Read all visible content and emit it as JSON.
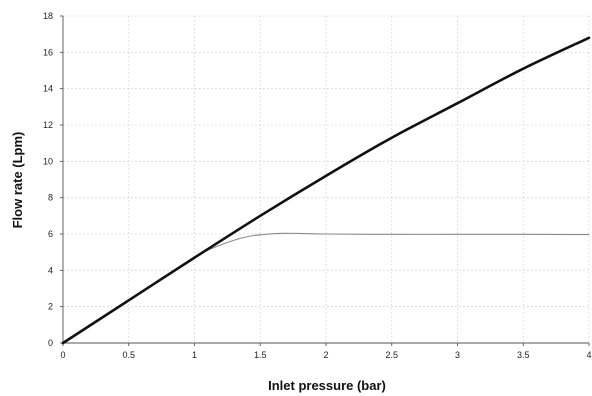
{
  "chart_data": {
    "type": "line",
    "xlabel": "Inlet pressure (bar)",
    "ylabel": "Flow rate (Lpm)",
    "xlim": [
      0,
      4
    ],
    "ylim": [
      0,
      18
    ],
    "x_ticks": [
      "0",
      "0.5",
      "1",
      "1.5",
      "2",
      "2.5",
      "3",
      "3.5",
      "4"
    ],
    "y_ticks": [
      "0",
      "2",
      "4",
      "6",
      "8",
      "10",
      "12",
      "14",
      "16",
      "18"
    ],
    "grid": true,
    "legend": "none",
    "series": [
      {
        "color": "#111111",
        "x": [
          0,
          0.5,
          1,
          1.5,
          2,
          2.5,
          3,
          3.5,
          4
        ],
        "y": [
          0,
          2.35,
          4.7,
          7.0,
          9.2,
          11.3,
          13.2,
          15.1,
          16.8
        ]
      },
      {
        "color": "#8a8a8a",
        "x": [
          0,
          0.5,
          1,
          1.2,
          1.4,
          1.6,
          1.8,
          2,
          2.5,
          3,
          3.5,
          4
        ],
        "y": [
          0,
          2.35,
          4.7,
          5.4,
          5.85,
          6.02,
          6.03,
          6.0,
          5.98,
          5.98,
          5.98,
          5.97
        ]
      }
    ]
  }
}
